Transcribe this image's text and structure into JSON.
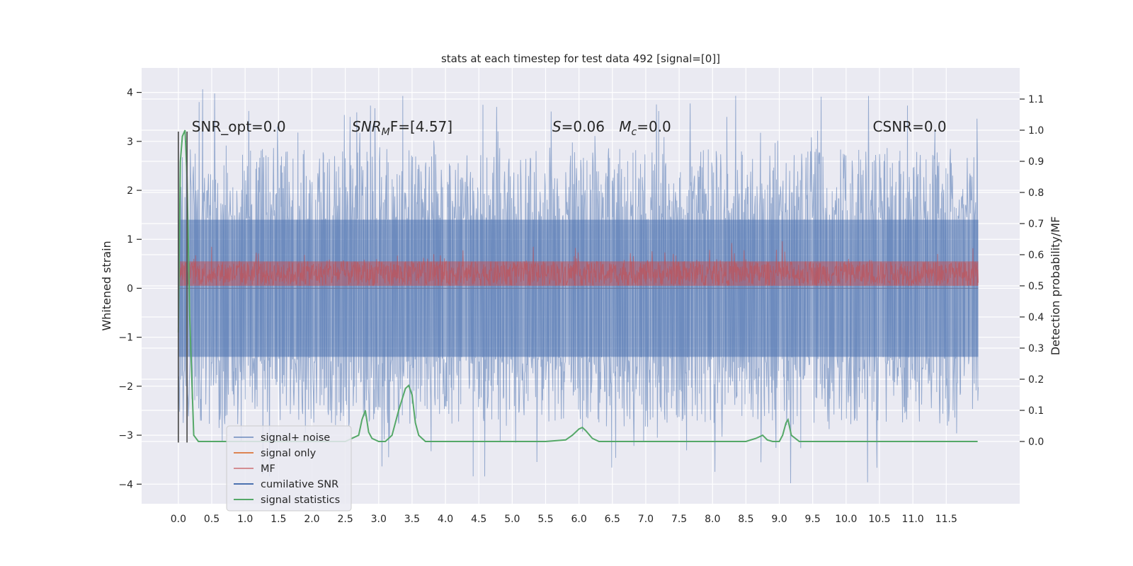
{
  "chart_data": {
    "type": "line",
    "title": "stats at each timestep for test data 492 [signal=[0]]",
    "xlabel": "",
    "ylabel": "Whitened strain",
    "ylabel_right": "Detection probability/MF",
    "xlim": [
      -0.55,
      12.6
    ],
    "ylim": [
      -4.4,
      4.5
    ],
    "ylim_right": [
      -0.2,
      1.2
    ],
    "x_ticks": [
      0.0,
      0.5,
      1.0,
      1.5,
      2.0,
      2.5,
      3.0,
      3.5,
      4.0,
      4.5,
      5.0,
      5.5,
      6.0,
      6.5,
      7.0,
      7.5,
      8.0,
      8.5,
      9.0,
      9.5,
      10.0,
      10.5,
      11.0,
      11.5
    ],
    "x_tick_labels": [
      "0.0",
      "0.5",
      "1.0",
      "1.5",
      "2.0",
      "2.5",
      "3.0",
      "3.5",
      "4.0",
      "4.5",
      "5.0",
      "5.5",
      "6.0",
      "6.5",
      "7.0",
      "7.5",
      "8.0",
      "8.5",
      "9.0",
      "9.5",
      "10.0",
      "10.5",
      "11.0",
      "11.5"
    ],
    "y_ticks": [
      -4,
      -3,
      -2,
      -1,
      0,
      1,
      2,
      3,
      4
    ],
    "y_tick_labels": [
      "−4",
      "−3",
      "−2",
      "−1",
      "0",
      "1",
      "2",
      "3",
      "4"
    ],
    "y_ticks_right": [
      0.0,
      0.1,
      0.2,
      0.3,
      0.4,
      0.5,
      0.6,
      0.7,
      0.8,
      0.9,
      1.0,
      1.1
    ],
    "y_tick_labels_right": [
      "0.0",
      "0.1",
      "0.2",
      "0.3",
      "0.4",
      "0.5",
      "0.6",
      "0.7",
      "0.8",
      "0.9",
      "1.0",
      "1.1"
    ],
    "grid": true,
    "legend_position": "lower-left",
    "annotations": [
      {
        "text": "SNR_opt=0.0",
        "x": 0.2,
        "y": 3.2
      },
      {
        "text": "SNR",
        "sub": "M",
        "tail": "F=[4.57]",
        "x": 2.6,
        "y": 3.2
      },
      {
        "text": "S",
        "tail": "=0.06",
        "x": 5.6,
        "y": 3.2
      },
      {
        "text": "M",
        "sub": "c",
        "tail": "=0.0",
        "x": 6.6,
        "y": 3.2
      },
      {
        "text": "CSNR=0.0",
        "x": 10.4,
        "y": 3.2
      }
    ],
    "vertical_lines": [
      {
        "x": 0.0,
        "y0": -3.15,
        "y1": 3.2
      },
      {
        "x": 0.13,
        "y0": -3.15,
        "y1": 3.2
      }
    ],
    "series": [
      {
        "name": "signal+ noise",
        "color": "#4c72b0",
        "axis": "left",
        "x_range": [
          0.0,
          11.98
        ],
        "band": [
          -1.4,
          1.4
        ],
        "peak_max": 4.1,
        "peak_min": -4.0
      },
      {
        "name": "signal only",
        "color": "#dd8452",
        "axis": "left",
        "x": [
          0.0,
          11.98
        ],
        "y": [
          0.0,
          0.0
        ]
      },
      {
        "name": "MF",
        "color": "#c44e52",
        "axis": "left",
        "x_range": [
          0.0,
          11.98
        ],
        "band": [
          0.05,
          0.55
        ],
        "peak_max": 1.0
      },
      {
        "name": "cumilative SNR",
        "color": "#4c72b0",
        "axis": "left",
        "x": [
          0.0,
          11.98
        ],
        "y": [
          0.0,
          0.0
        ]
      },
      {
        "name": "signal statistics",
        "color": "#55a868",
        "axis": "right",
        "x": [
          0.0,
          0.03,
          0.06,
          0.1,
          0.13,
          0.17,
          0.23,
          0.3,
          0.5,
          1.0,
          1.5,
          2.0,
          2.5,
          2.7,
          2.75,
          2.8,
          2.85,
          2.9,
          3.0,
          3.1,
          3.2,
          3.3,
          3.4,
          3.45,
          3.5,
          3.55,
          3.6,
          3.65,
          3.7,
          3.8,
          4.0,
          4.5,
          5.0,
          5.5,
          5.8,
          5.9,
          6.0,
          6.05,
          6.1,
          6.2,
          6.3,
          6.5,
          7.0,
          7.5,
          8.0,
          8.5,
          8.65,
          8.75,
          8.82,
          8.9,
          9.0,
          9.05,
          9.1,
          9.13,
          9.18,
          9.3,
          9.5,
          10.0,
          11.0,
          11.97
        ],
        "y": [
          0.35,
          0.9,
          0.98,
          1.0,
          0.85,
          0.4,
          0.02,
          0.0,
          0.0,
          0.0,
          0.0,
          0.0,
          0.0,
          0.02,
          0.07,
          0.1,
          0.03,
          0.01,
          0.0,
          0.0,
          0.02,
          0.1,
          0.17,
          0.18,
          0.15,
          0.06,
          0.02,
          0.01,
          0.0,
          0.0,
          0.0,
          0.0,
          0.0,
          0.0,
          0.005,
          0.02,
          0.04,
          0.045,
          0.035,
          0.01,
          0.0,
          0.0,
          0.0,
          0.0,
          0.0,
          0.0,
          0.01,
          0.02,
          0.005,
          0.0,
          0.0,
          0.02,
          0.06,
          0.07,
          0.02,
          0.0,
          0.0,
          0.0,
          0.0,
          0.0
        ]
      }
    ]
  }
}
